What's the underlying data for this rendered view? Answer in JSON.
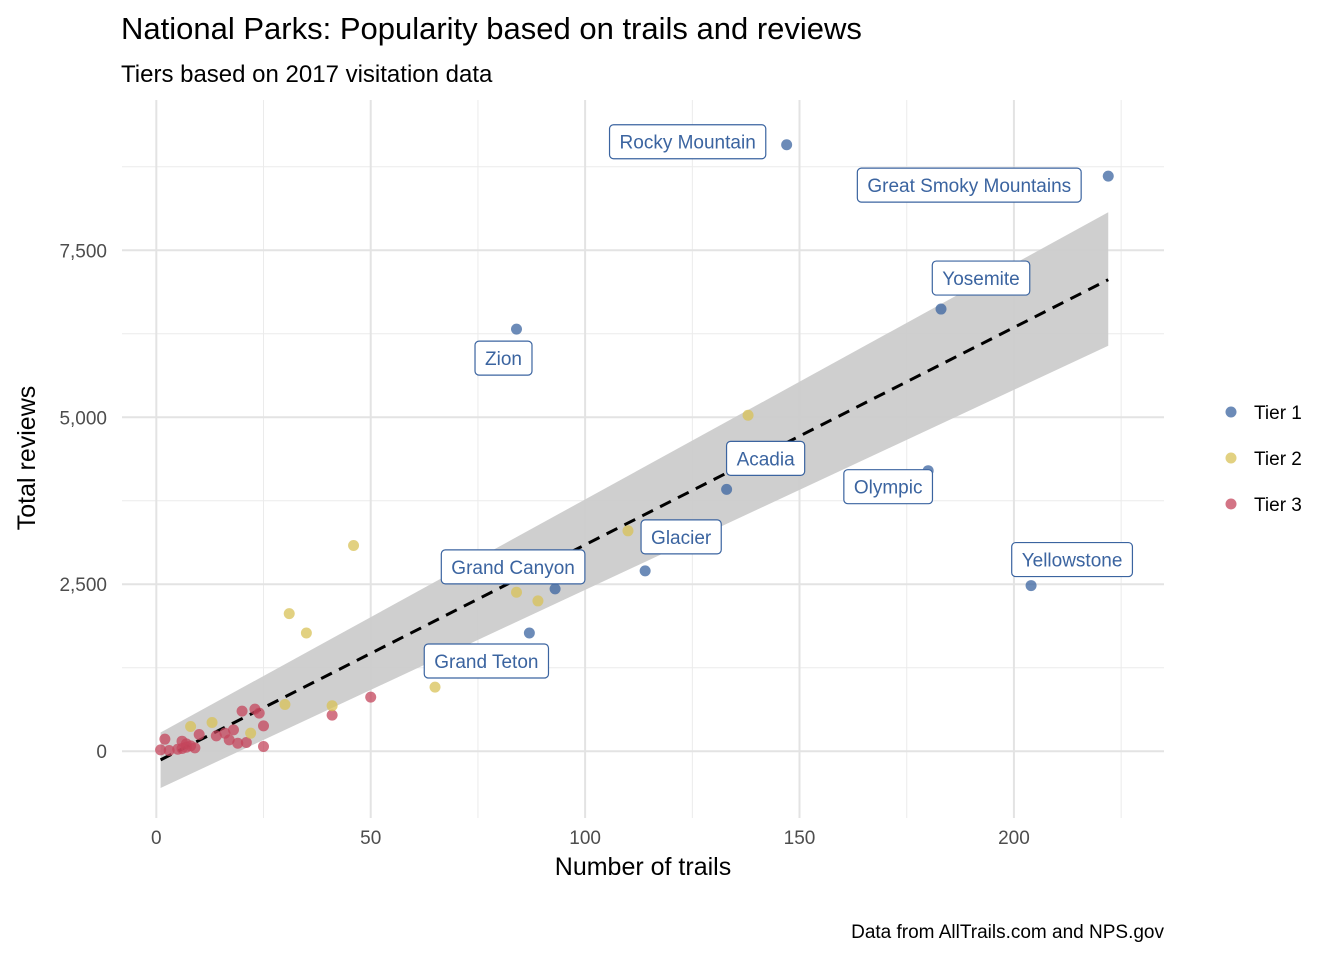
{
  "chart_data": {
    "type": "scatter",
    "title": "National Parks: Popularity based on trails and reviews",
    "subtitle": "Tiers based on 2017 visitation data",
    "xlabel": "Number of trails",
    "ylabel": "Total reviews",
    "caption": "Data from AllTrails.com and NPS.gov",
    "xlim": [
      -8,
      235
    ],
    "ylim": [
      -1000,
      9750
    ],
    "x_ticks": [
      0,
      50,
      100,
      150,
      200
    ],
    "x_tick_labels": [
      "0",
      "50",
      "100",
      "150",
      "200"
    ],
    "y_ticks": [
      0,
      2500,
      5000,
      7500
    ],
    "y_tick_labels": [
      "0",
      "2,500",
      "5,000",
      "7,500"
    ],
    "grid": true,
    "legend_position": "right",
    "series": [
      {
        "name": "Tier 1",
        "color": "#3b64a0",
        "points": [
          {
            "x": 147,
            "y": 9080,
            "label": "Rocky Mountain"
          },
          {
            "x": 222,
            "y": 8610,
            "label": "Great Smoky Mountains"
          },
          {
            "x": 183,
            "y": 6620,
            "label": "Yosemite"
          },
          {
            "x": 84,
            "y": 6320,
            "label": "Zion"
          },
          {
            "x": 133,
            "y": 3920,
            "label": "Acadia"
          },
          {
            "x": 180,
            "y": 4200,
            "label": "Olympic"
          },
          {
            "x": 114,
            "y": 2700,
            "label": "Glacier"
          },
          {
            "x": 204,
            "y": 2480,
            "label": "Yellowstone"
          },
          {
            "x": 93,
            "y": 2430,
            "label": "Grand Canyon"
          },
          {
            "x": 87,
            "y": 1770,
            "label": "Grand Teton"
          }
        ]
      },
      {
        "name": "Tier 2",
        "color": "#d8c157",
        "points": [
          {
            "x": 138,
            "y": 5030
          },
          {
            "x": 110,
            "y": 3300
          },
          {
            "x": 46,
            "y": 3080
          },
          {
            "x": 84,
            "y": 2380
          },
          {
            "x": 89,
            "y": 2250
          },
          {
            "x": 31,
            "y": 2060
          },
          {
            "x": 35,
            "y": 1770
          },
          {
            "x": 65,
            "y": 960
          },
          {
            "x": 30,
            "y": 700
          },
          {
            "x": 41,
            "y": 680
          },
          {
            "x": 8,
            "y": 370
          },
          {
            "x": 13,
            "y": 430
          },
          {
            "x": 22,
            "y": 270
          }
        ]
      },
      {
        "name": "Tier 3",
        "color": "#c4455c",
        "points": [
          {
            "x": 50,
            "y": 810
          },
          {
            "x": 41,
            "y": 540
          },
          {
            "x": 20,
            "y": 600
          },
          {
            "x": 23,
            "y": 630
          },
          {
            "x": 24,
            "y": 570
          },
          {
            "x": 25,
            "y": 380
          },
          {
            "x": 18,
            "y": 320
          },
          {
            "x": 16,
            "y": 270
          },
          {
            "x": 14,
            "y": 230
          },
          {
            "x": 10,
            "y": 250
          },
          {
            "x": 17,
            "y": 170
          },
          {
            "x": 19,
            "y": 120
          },
          {
            "x": 21,
            "y": 130
          },
          {
            "x": 25,
            "y": 70
          },
          {
            "x": 2,
            "y": 180
          },
          {
            "x": 6,
            "y": 150
          },
          {
            "x": 7,
            "y": 110
          },
          {
            "x": 8,
            "y": 80
          },
          {
            "x": 1,
            "y": 20
          },
          {
            "x": 3,
            "y": 10
          },
          {
            "x": 5,
            "y": 30
          },
          {
            "x": 6,
            "y": 40
          },
          {
            "x": 7,
            "y": 60
          },
          {
            "x": 9,
            "y": 50
          }
        ]
      }
    ],
    "trend": {
      "line": [
        [
          1,
          -130
        ],
        [
          222,
          7060
        ]
      ],
      "band_lower": [
        [
          1,
          -550
        ],
        [
          222,
          6070
        ]
      ],
      "band_upper": [
        [
          1,
          280
        ],
        [
          222,
          8070
        ]
      ],
      "line_color": "#000000",
      "band_color": "#cccccc"
    }
  }
}
